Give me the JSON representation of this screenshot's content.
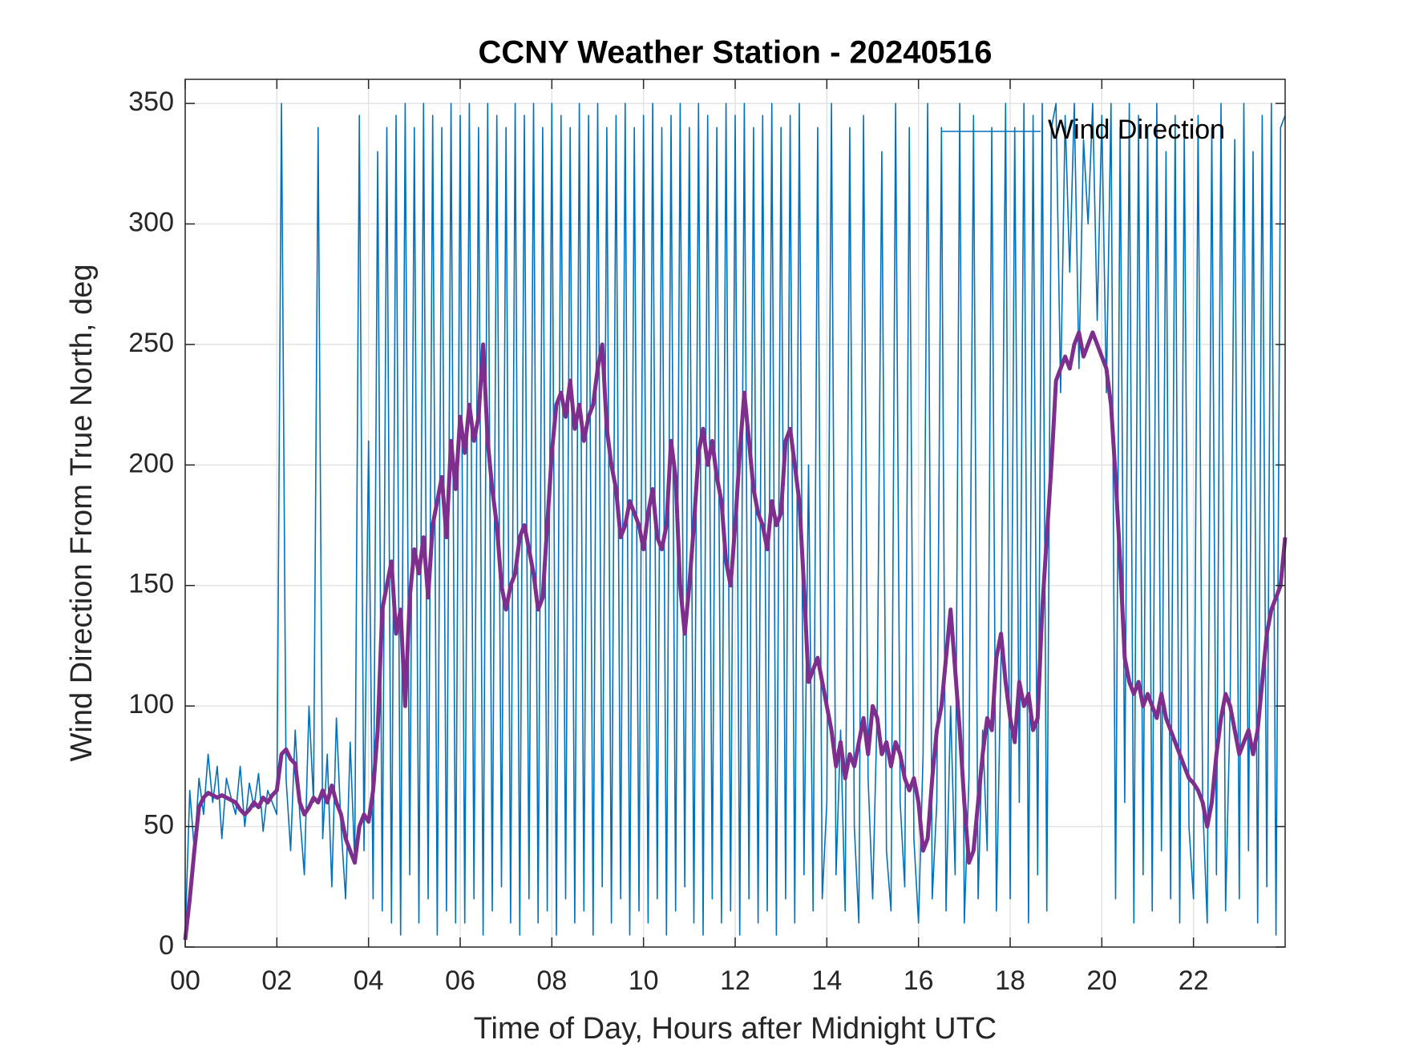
{
  "chart_data": {
    "type": "line",
    "title": "CCNY Weather Station - 20240516",
    "xlabel": "Time of Day, Hours after Midnight UTC",
    "ylabel": "Wind Direction From True North, deg",
    "xlim": [
      0,
      24
    ],
    "ylim": [
      0,
      360
    ],
    "xticks": [
      {
        "value": 0,
        "label": "00"
      },
      {
        "value": 2,
        "label": "02"
      },
      {
        "value": 4,
        "label": "04"
      },
      {
        "value": 6,
        "label": "06"
      },
      {
        "value": 8,
        "label": "08"
      },
      {
        "value": 10,
        "label": "10"
      },
      {
        "value": 12,
        "label": "12"
      },
      {
        "value": 14,
        "label": "14"
      },
      {
        "value": 16,
        "label": "16"
      },
      {
        "value": 18,
        "label": "18"
      },
      {
        "value": 20,
        "label": "20"
      },
      {
        "value": 22,
        "label": "22"
      }
    ],
    "yticks": [
      0,
      50,
      100,
      150,
      200,
      250,
      300,
      350
    ],
    "grid": true,
    "legend": "upper right",
    "x": [
      0,
      0.1,
      0.2,
      0.3,
      0.4,
      0.5,
      0.6,
      0.7,
      0.8,
      0.9,
      1,
      1.1,
      1.2,
      1.3,
      1.4,
      1.5,
      1.6,
      1.7,
      1.8,
      1.9,
      2,
      2.1,
      2.2,
      2.3,
      2.4,
      2.5,
      2.6,
      2.7,
      2.8,
      2.9,
      3,
      3.1,
      3.2,
      3.3,
      3.4,
      3.5,
      3.6,
      3.7,
      3.8,
      3.9,
      4,
      4.1,
      4.2,
      4.3,
      4.4,
      4.5,
      4.6,
      4.7,
      4.8,
      4.9,
      5,
      5.1,
      5.2,
      5.3,
      5.4,
      5.5,
      5.6,
      5.7,
      5.8,
      5.9,
      6,
      6.1,
      6.2,
      6.3,
      6.4,
      6.5,
      6.6,
      6.7,
      6.8,
      6.9,
      7,
      7.1,
      7.2,
      7.3,
      7.4,
      7.5,
      7.6,
      7.7,
      7.8,
      7.9,
      8,
      8.1,
      8.2,
      8.3,
      8.4,
      8.5,
      8.6,
      8.7,
      8.8,
      8.9,
      9,
      9.1,
      9.2,
      9.3,
      9.4,
      9.5,
      9.6,
      9.7,
      9.8,
      9.9,
      10,
      10.1,
      10.2,
      10.3,
      10.4,
      10.5,
      10.6,
      10.7,
      10.8,
      10.9,
      11,
      11.1,
      11.2,
      11.3,
      11.4,
      11.5,
      11.6,
      11.7,
      11.8,
      11.9,
      12,
      12.1,
      12.2,
      12.3,
      12.4,
      12.5,
      12.6,
      12.7,
      12.8,
      12.9,
      13,
      13.1,
      13.2,
      13.3,
      13.4,
      13.5,
      13.6,
      13.7,
      13.8,
      13.9,
      14,
      14.1,
      14.2,
      14.3,
      14.4,
      14.5,
      14.6,
      14.7,
      14.8,
      14.9,
      15,
      15.1,
      15.2,
      15.3,
      15.4,
      15.5,
      15.6,
      15.7,
      15.8,
      15.9,
      16,
      16.1,
      16.2,
      16.3,
      16.4,
      16.5,
      16.6,
      16.7,
      16.8,
      16.9,
      17,
      17.1,
      17.2,
      17.3,
      17.4,
      17.5,
      17.6,
      17.7,
      17.8,
      17.9,
      18,
      18.1,
      18.2,
      18.3,
      18.4,
      18.5,
      18.6,
      18.7,
      18.8,
      18.9,
      19,
      19.1,
      19.2,
      19.3,
      19.4,
      19.5,
      19.6,
      19.7,
      19.8,
      19.9,
      20,
      20.1,
      20.2,
      20.3,
      20.4,
      20.5,
      20.6,
      20.7,
      20.8,
      20.9,
      21,
      21.1,
      21.2,
      21.3,
      21.4,
      21.5,
      21.6,
      21.7,
      21.8,
      21.9,
      22,
      22.1,
      22.2,
      22.3,
      22.4,
      22.5,
      22.6,
      22.7,
      22.8,
      22.9,
      23,
      23.1,
      23.2,
      23.3,
      23.4,
      23.5,
      23.6,
      23.7,
      23.8,
      23.9,
      24
    ],
    "series": [
      {
        "name": "Wind Direction",
        "color": "#0072BD",
        "values": [
          5,
          65,
          40,
          70,
          55,
          80,
          60,
          75,
          45,
          70,
          62,
          55,
          75,
          50,
          68,
          58,
          72,
          48,
          65,
          60,
          55,
          350,
          70,
          40,
          90,
          55,
          30,
          100,
          60,
          340,
          45,
          80,
          25,
          95,
          50,
          20,
          85,
          35,
          345,
          40,
          210,
          20,
          330,
          15,
          340,
          10,
          345,
          5,
          350,
          30,
          340,
          10,
          350,
          20,
          345,
          5,
          340,
          15,
          350,
          10,
          345,
          10,
          350,
          20,
          340,
          5,
          350,
          15,
          345,
          25,
          340,
          10,
          350,
          5,
          345,
          20,
          350,
          10,
          340,
          15,
          350,
          5,
          345,
          20,
          340,
          10,
          350,
          15,
          345,
          5,
          350,
          25,
          340,
          10,
          345,
          20,
          350,
          5,
          340,
          15,
          345,
          10,
          350,
          20,
          340,
          5,
          345,
          15,
          350,
          25,
          340,
          10,
          350,
          5,
          345,
          20,
          340,
          10,
          350,
          15,
          345,
          5,
          350,
          20,
          340,
          10,
          345,
          15,
          350,
          5,
          340,
          20,
          345,
          10,
          350,
          30,
          200,
          15,
          340,
          20,
          60,
          350,
          30,
          90,
          15,
          340,
          50,
          10,
          345,
          70,
          20,
          100,
          330,
          40,
          15,
          350,
          60,
          25,
          340,
          45,
          10,
          80,
          350,
          20,
          60,
          340,
          15,
          100,
          30,
          350,
          10,
          70,
          345,
          20,
          90,
          40,
          340,
          15,
          120,
          350,
          20,
          340,
          60,
          350,
          10,
          345,
          30,
          350,
          15,
          340,
          350,
          230,
          345,
          280,
          350,
          240,
          335,
          300,
          350,
          260,
          345,
          230,
          350,
          20,
          340,
          60,
          350,
          10,
          345,
          30,
          340,
          15,
          350,
          40,
          330,
          20,
          345,
          10,
          340,
          50,
          20,
          345,
          60,
          10,
          340,
          30,
          350,
          15,
          100,
          335,
          20,
          350,
          40,
          330,
          10,
          345,
          25,
          350,
          5,
          340,
          345
        ]
      },
      {
        "color": "#7E2F8E",
        "values": [
          3,
          20,
          40,
          58,
          62,
          64,
          63,
          62,
          63,
          62,
          61,
          60,
          57,
          55,
          57,
          60,
          58,
          62,
          60,
          63,
          65,
          80,
          82,
          78,
          76,
          60,
          55,
          58,
          62,
          60,
          65,
          60,
          67,
          60,
          55,
          45,
          40,
          35,
          50,
          55,
          52,
          65,
          90,
          140,
          150,
          160,
          130,
          140,
          100,
          145,
          165,
          155,
          170,
          145,
          175,
          185,
          195,
          170,
          210,
          190,
          220,
          205,
          225,
          210,
          220,
          250,
          210,
          190,
          175,
          150,
          140,
          150,
          155,
          170,
          175,
          165,
          155,
          140,
          145,
          175,
          205,
          225,
          230,
          220,
          235,
          215,
          225,
          210,
          220,
          225,
          240,
          250,
          215,
          200,
          190,
          170,
          175,
          185,
          180,
          175,
          165,
          180,
          190,
          170,
          165,
          175,
          210,
          195,
          150,
          130,
          150,
          175,
          205,
          215,
          200,
          210,
          195,
          185,
          160,
          150,
          175,
          205,
          230,
          210,
          190,
          180,
          175,
          165,
          185,
          175,
          180,
          210,
          215,
          200,
          185,
          150,
          110,
          115,
          120,
          110,
          100,
          90,
          75,
          85,
          70,
          80,
          75,
          85,
          95,
          80,
          100,
          95,
          80,
          85,
          75,
          85,
          80,
          70,
          65,
          70,
          60,
          40,
          45,
          70,
          90,
          100,
          120,
          140,
          115,
          90,
          60,
          35,
          40,
          60,
          80,
          95,
          90,
          120,
          130,
          110,
          95,
          85,
          110,
          100,
          105,
          90,
          95,
          140,
          170,
          200,
          235,
          240,
          245,
          240,
          250,
          255,
          245,
          250,
          255,
          250,
          245,
          240,
          225,
          195,
          160,
          120,
          110,
          105,
          110,
          100,
          105,
          100,
          95,
          105,
          95,
          90,
          85,
          80,
          75,
          70,
          68,
          65,
          60,
          50,
          60,
          80,
          95,
          105,
          100,
          90,
          80,
          85,
          90,
          80,
          90,
          110,
          130,
          140,
          145,
          150,
          170
        ]
      }
    ]
  }
}
